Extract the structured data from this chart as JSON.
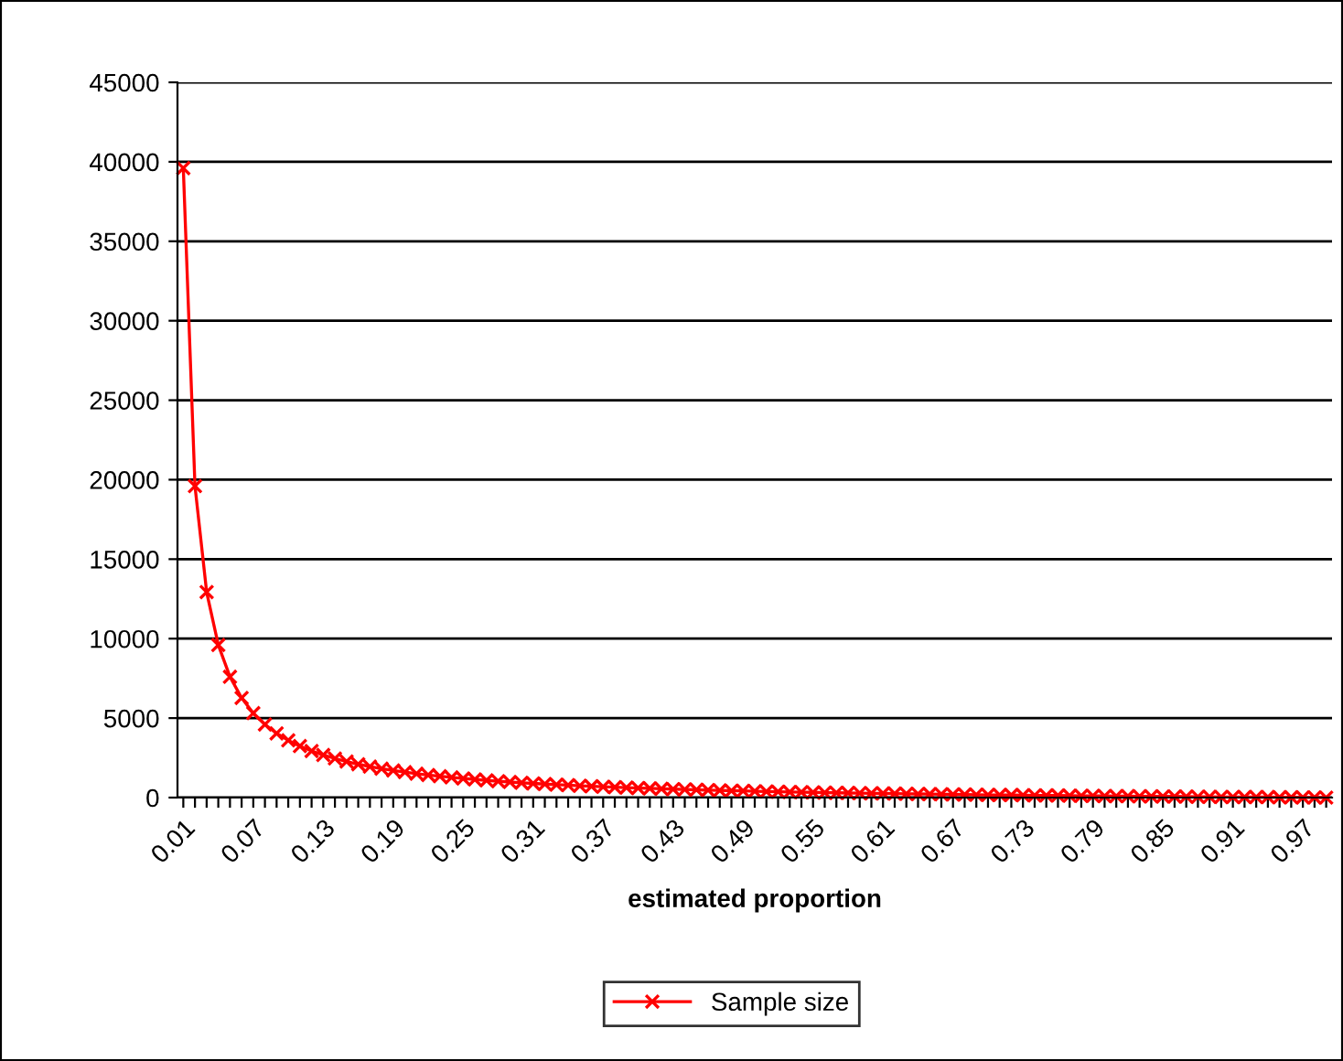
{
  "chart_data": {
    "type": "line",
    "xlabel": "estimated proportion",
    "categories": [
      "0.01",
      null,
      null,
      null,
      null,
      null,
      "0.07",
      null,
      null,
      null,
      null,
      null,
      "0.13",
      null,
      null,
      null,
      null,
      null,
      "0.19",
      null,
      null,
      null,
      null,
      null,
      "0.25",
      null,
      null,
      null,
      null,
      null,
      "0.31",
      null,
      null,
      null,
      null,
      null,
      "0.37",
      null,
      null,
      null,
      null,
      null,
      "0.43",
      null,
      null,
      null,
      null,
      null,
      "0.49",
      null,
      null,
      null,
      null,
      null,
      "0.55",
      null,
      null,
      null,
      null,
      null,
      "0.61",
      null,
      null,
      null,
      null,
      null,
      "0.67",
      null,
      null,
      null,
      null,
      null,
      "0.73",
      null,
      null,
      null,
      null,
      null,
      "0.79",
      null,
      null,
      null,
      null,
      null,
      "0.85",
      null,
      null,
      null,
      null,
      null,
      "0.91",
      null,
      null,
      null,
      null,
      null,
      "0.97",
      null,
      null
    ],
    "series": [
      {
        "name": "Sample size",
        "color": "#ff0000",
        "values": [
          39600,
          19600,
          12930,
          9600,
          7600,
          6270,
          5310,
          4600,
          4040,
          3600,
          3240,
          2930,
          2680,
          2460,
          2270,
          2100,
          1950,
          1820,
          1710,
          1600,
          1500,
          1420,
          1340,
          1270,
          1200,
          1140,
          1080,
          1030,
          980,
          930,
          890,
          850,
          810,
          780,
          740,
          710,
          680,
          650,
          630,
          600,
          580,
          550,
          530,
          510,
          490,
          470,
          450,
          430,
          420,
          400,
          380,
          370,
          350,
          340,
          330,
          310,
          300,
          290,
          280,
          270,
          260,
          250,
          240,
          230,
          220,
          210,
          200,
          190,
          180,
          170,
          160,
          160,
          150,
          140,
          130,
          130,
          120,
          110,
          110,
          100,
          90,
          90,
          80,
          80,
          70,
          70,
          60,
          50,
          50,
          40,
          40,
          30,
          30,
          30,
          20,
          20,
          10,
          10,
          0
        ]
      }
    ],
    "ylim": [
      0,
      45000
    ],
    "yticks": [
      0,
      5000,
      10000,
      15000,
      20000,
      25000,
      30000,
      35000,
      40000,
      45000
    ],
    "grid": "y",
    "legend": "bottom",
    "marker": "cross",
    "line_style": "solid"
  }
}
